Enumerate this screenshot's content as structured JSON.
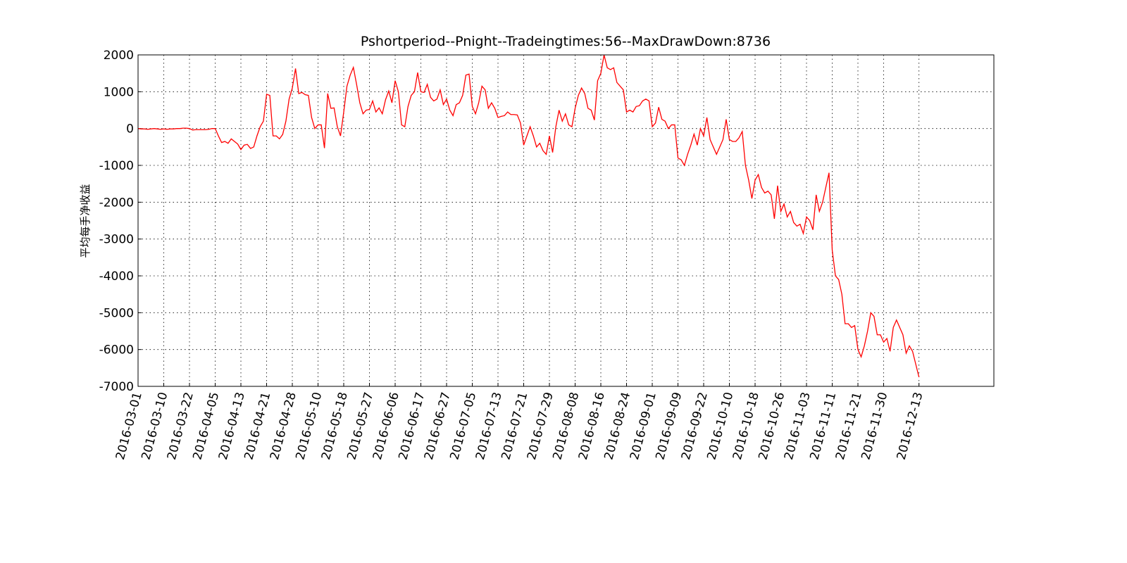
{
  "chart_data": {
    "type": "line",
    "title": "Pshortperiod--Pnight--Tradeingtimes:56--MaxDrawDown:8736",
    "y_label": "平均每手净收益",
    "color": "#ff0000",
    "grid": true,
    "ylim": [
      -7000,
      2000
    ],
    "yticks": [
      -7000,
      -6000,
      -5000,
      -4000,
      -3000,
      -2000,
      -1000,
      0,
      1000,
      2000
    ],
    "categories": [
      "2016-03-01",
      null,
      null,
      null,
      null,
      null,
      null,
      null,
      "2016-03-10",
      null,
      null,
      null,
      null,
      null,
      null,
      null,
      "2016-03-22",
      null,
      null,
      null,
      null,
      null,
      null,
      null,
      "2016-04-05",
      null,
      null,
      null,
      null,
      null,
      null,
      null,
      "2016-04-13",
      null,
      null,
      null,
      null,
      null,
      null,
      null,
      "2016-04-21",
      null,
      null,
      null,
      null,
      null,
      null,
      null,
      "2016-04-28",
      null,
      null,
      null,
      null,
      null,
      null,
      null,
      "2016-05-10",
      null,
      null,
      null,
      null,
      null,
      null,
      null,
      "2016-05-18",
      null,
      null,
      null,
      null,
      null,
      null,
      null,
      "2016-05-27",
      null,
      null,
      null,
      null,
      null,
      null,
      null,
      "2016-06-06",
      null,
      null,
      null,
      null,
      null,
      null,
      null,
      "2016-06-17",
      null,
      null,
      null,
      null,
      null,
      null,
      null,
      "2016-06-27",
      null,
      null,
      null,
      null,
      null,
      null,
      null,
      "2016-07-05",
      null,
      null,
      null,
      null,
      null,
      null,
      null,
      "2016-07-13",
      null,
      null,
      null,
      null,
      null,
      null,
      null,
      "2016-07-21",
      null,
      null,
      null,
      null,
      null,
      null,
      null,
      "2016-07-29",
      null,
      null,
      null,
      null,
      null,
      null,
      null,
      "2016-08-08",
      null,
      null,
      null,
      null,
      null,
      null,
      null,
      "2016-08-16",
      null,
      null,
      null,
      null,
      null,
      null,
      null,
      "2016-08-24",
      null,
      null,
      null,
      null,
      null,
      null,
      null,
      "2016-09-01",
      null,
      null,
      null,
      null,
      null,
      null,
      null,
      "2016-09-09",
      null,
      null,
      null,
      null,
      null,
      null,
      null,
      "2016-09-22",
      null,
      null,
      null,
      null,
      null,
      null,
      null,
      "2016-10-10",
      null,
      null,
      null,
      null,
      null,
      null,
      null,
      "2016-10-18",
      null,
      null,
      null,
      null,
      null,
      null,
      null,
      "2016-10-26",
      null,
      null,
      null,
      null,
      null,
      null,
      null,
      "2016-11-03",
      null,
      null,
      null,
      null,
      null,
      null,
      null,
      "2016-11-11",
      null,
      null,
      null,
      null,
      null,
      null,
      null,
      "2016-11-21",
      null,
      null,
      null,
      null,
      null,
      null,
      null,
      "2016-11-30",
      null,
      null,
      null,
      null,
      null,
      null,
      null,
      null,
      null,
      null,
      "2016-12-13"
    ],
    "values": [
      0,
      -10,
      -10,
      -20,
      -10,
      0,
      -10,
      -20,
      -10,
      -20,
      -10,
      -10,
      0,
      0,
      10,
      10,
      0,
      -40,
      -30,
      -30,
      -30,
      -30,
      -20,
      0,
      0,
      -200,
      -380,
      -350,
      -400,
      -280,
      -350,
      -420,
      -570,
      -450,
      -430,
      -540,
      -500,
      -200,
      50,
      200,
      930,
      900,
      -200,
      -200,
      -280,
      -160,
      200,
      800,
      1100,
      1630,
      950,
      980,
      920,
      900,
      300,
      0,
      100,
      100,
      -530,
      950,
      550,
      560,
      50,
      -200,
      450,
      1150,
      1450,
      1660,
      1200,
      700,
      400,
      500,
      520,
      750,
      450,
      560,
      400,
      780,
      1020,
      700,
      1300,
      1000,
      100,
      50,
      600,
      900,
      1000,
      1520,
      1000,
      980,
      1200,
      850,
      750,
      800,
      1050,
      650,
      800,
      500,
      350,
      650,
      700,
      900,
      1450,
      1480,
      600,
      400,
      700,
      1150,
      1050,
      550,
      700,
      550,
      300,
      330,
      350,
      450,
      380,
      380,
      370,
      150,
      -450,
      -200,
      50,
      -200,
      -500,
      -400,
      -600,
      -700,
      -200,
      -650,
      50,
      500,
      200,
      400,
      100,
      50,
      550,
      900,
      1100,
      950,
      550,
      500,
      230,
      1300,
      1500,
      2000,
      1650,
      1600,
      1650,
      1250,
      1150,
      1050,
      450,
      500,
      450,
      600,
      620,
      750,
      800,
      750,
      50,
      150,
      580,
      250,
      200,
      0,
      100,
      100,
      -800,
      -850,
      -1000,
      -700,
      -450,
      -150,
      -450,
      0,
      -200,
      300,
      -300,
      -500,
      -700,
      -500,
      -300,
      250,
      -300,
      -350,
      -350,
      -250,
      -80,
      -1000,
      -1400,
      -1900,
      -1400,
      -1250,
      -1600,
      -1750,
      -1700,
      -1800,
      -2450,
      -1550,
      -2250,
      -2050,
      -2400,
      -2250,
      -2550,
      -2650,
      -2600,
      -2850,
      -2400,
      -2500,
      -2750,
      -1800,
      -2250,
      -2000,
      -1600,
      -1200,
      -3300,
      -4000,
      -4100,
      -4500,
      -5300,
      -5300,
      -5400,
      -5350,
      -6000,
      -6200,
      -5900,
      -5500,
      -5000,
      -5100,
      -5600,
      -5600,
      -5800,
      -5700,
      -6050,
      -5400,
      -5200,
      -5400,
      -5600,
      -6100,
      -5900,
      -6050,
      -6400,
      -6750
    ]
  }
}
